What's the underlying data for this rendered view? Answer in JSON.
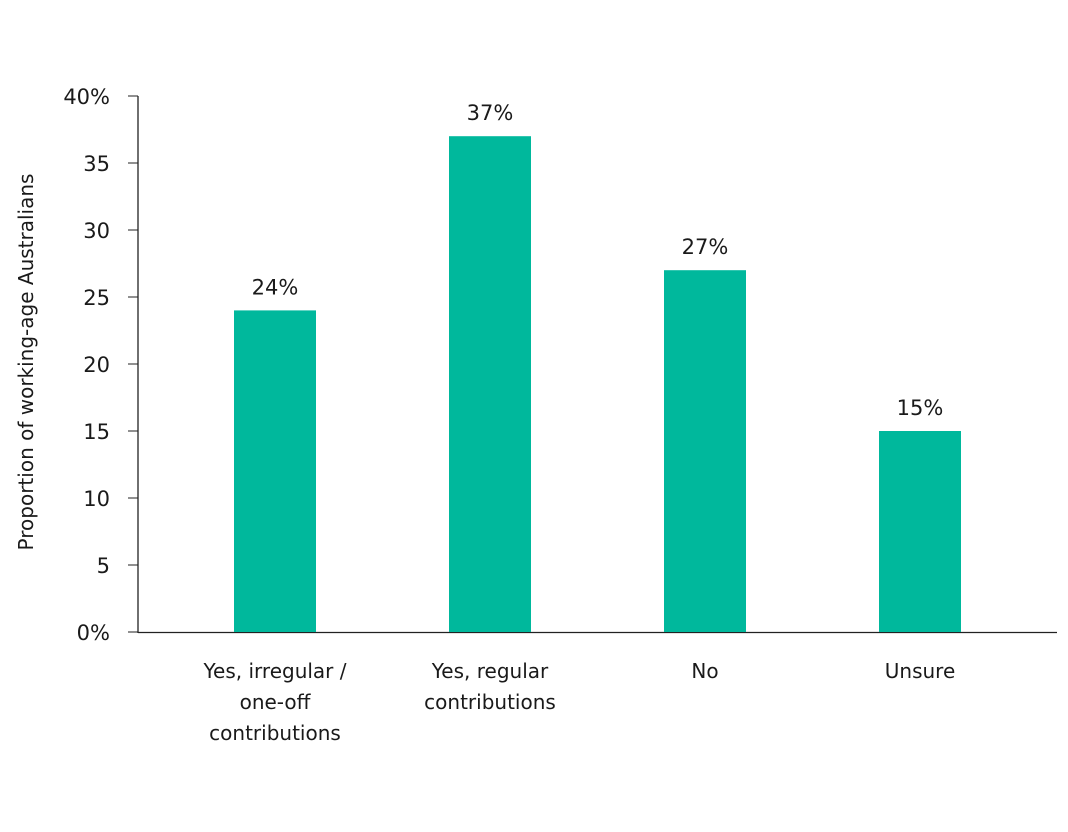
{
  "chart_data": {
    "type": "bar",
    "categories": [
      "Yes, irregular /\none-off\ncontributions",
      "Yes, regular\ncontributions",
      "No",
      "Unsure"
    ],
    "values": [
      24,
      37,
      27,
      15
    ],
    "data_labels": [
      "24%",
      "37%",
      "27%",
      "15%"
    ],
    "title": "",
    "xlabel": "",
    "ylabel": "Proportion of working-age Australians",
    "ylim": [
      0,
      40
    ],
    "yticks": [
      0,
      5,
      10,
      15,
      20,
      25,
      30,
      35,
      40
    ],
    "ytick_labels": [
      "0%",
      "5",
      "10",
      "15",
      "20",
      "25",
      "30",
      "35",
      "40%"
    ],
    "grid": false,
    "legend": "none",
    "bar_color": "#00b89c"
  }
}
